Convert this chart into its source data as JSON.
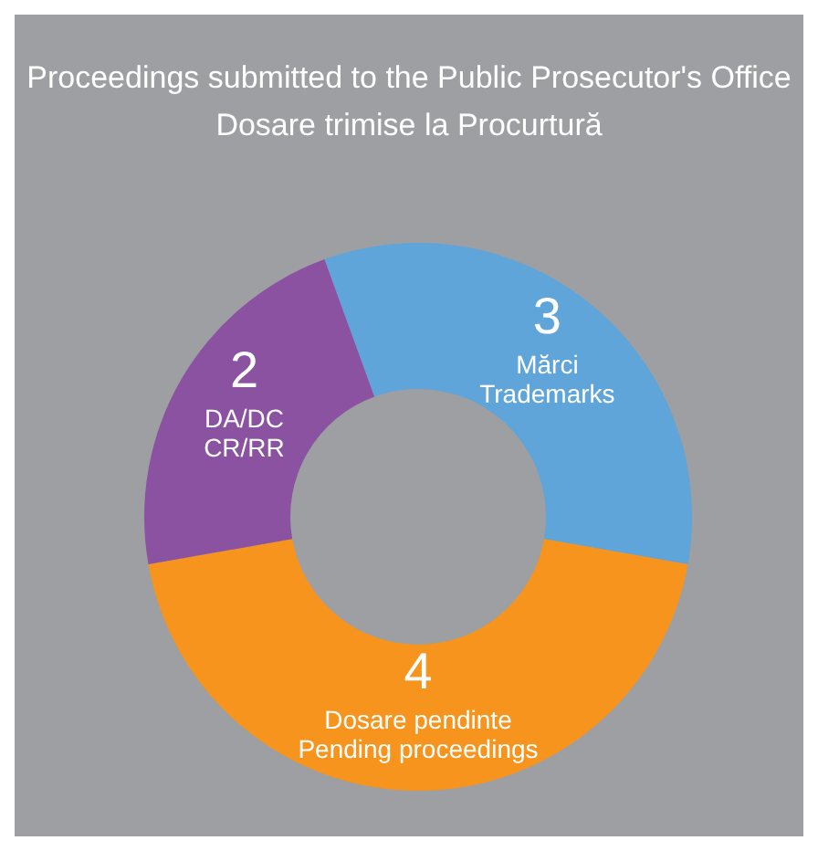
{
  "chart_data": {
    "type": "donut",
    "annotations": [
      "Proceedings submitted to the Public Prosecutor's Office",
      "Dosare trimise la Procurtură"
    ],
    "categories": [
      "Mărci\nTrademarks",
      "Dosare pendinte\nPending proceedings",
      "DA/DC\nCR/RR"
    ],
    "values": [
      3,
      4,
      2
    ],
    "colors": [
      "#60a5d9",
      "#f7941d",
      "#8a52a1"
    ],
    "data_labels": true
  }
}
